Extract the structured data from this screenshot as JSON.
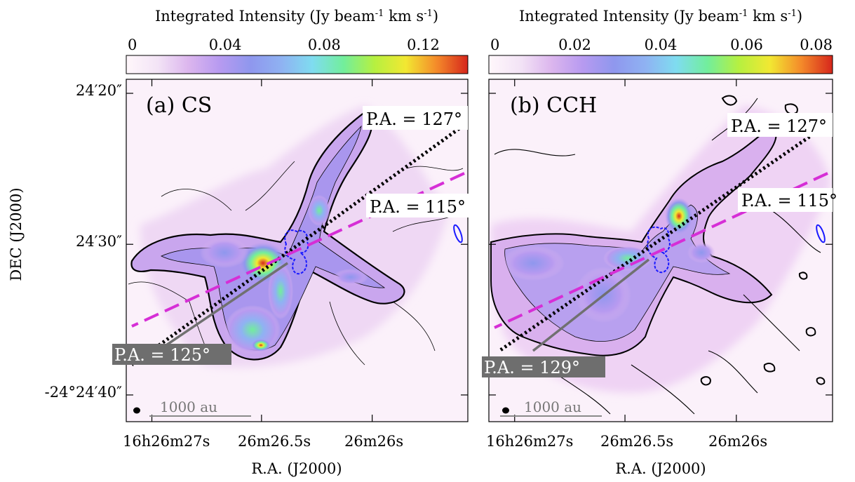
{
  "figure": {
    "ylabel": "DEC (J2000)",
    "yticks": [
      "24′20″",
      "24′30″",
      "-24°24′40″"
    ],
    "xticks": [
      "16h26m27s",
      "26m26.5s",
      "26m26s"
    ]
  },
  "colors": {
    "colormap": [
      "#fff7fb",
      "#f3e4f6",
      "#dcb6ee",
      "#b79af0",
      "#8f97ee",
      "#8fb2f2",
      "#7fdcf0",
      "#72ee9c",
      "#b6f040",
      "#f2e832",
      "#f48a2a",
      "#d6261c"
    ],
    "pa_dashed": "#d62ed6",
    "pa_dotted": "#000000",
    "pa_solid": "#707070",
    "beam_outline": "#1a1aff"
  },
  "chart_data": [
    {
      "type": "heatmap",
      "panel_label": "(a) CS",
      "title": "Integrated Intensity (Jy beam-1 km s-1)",
      "colorbar": {
        "range": [
          0,
          0.138
        ],
        "ticks": [
          0,
          0.04,
          0.08,
          0.12
        ],
        "tick_labels": [
          "0",
          "0.04",
          "0.08",
          "0.12"
        ]
      },
      "xlabel": "R.A. (J2000)",
      "xticks": [
        "16h26m27s",
        "26m26.5s",
        "26m26s"
      ],
      "ylabel": "DEC (J2000)",
      "yticks": [
        "24′20″",
        "24′30″",
        "-24°24′40″"
      ],
      "position_angle_lines": [
        {
          "label": "P.A. = 127°",
          "style": "dotted",
          "angle_deg": 127
        },
        {
          "label": "P.A. = 115°",
          "style": "dashed",
          "angle_deg": 115
        },
        {
          "label": "P.A. = 125°",
          "style": "solid",
          "angle_deg": 125
        }
      ],
      "scale_bar": "1000 au"
    },
    {
      "type": "heatmap",
      "panel_label": "(b) CCH",
      "title": "Integrated Intensity (Jy beam-1 km s-1)",
      "colorbar": {
        "range": [
          0,
          0.08
        ],
        "ticks": [
          0,
          0.02,
          0.04,
          0.06,
          0.08
        ],
        "tick_labels": [
          "0",
          "0.02",
          "0.04",
          "0.06",
          "0.08"
        ]
      },
      "xlabel": "R.A. (J2000)",
      "xticks": [
        "16h26m27s",
        "26m26.5s",
        "26m26s"
      ],
      "ylabel": "DEC (J2000)",
      "yticks": [
        "24′20″",
        "24′30″",
        "-24°24′40″"
      ],
      "position_angle_lines": [
        {
          "label": "P.A. = 127°",
          "style": "dotted",
          "angle_deg": 127
        },
        {
          "label": "P.A. = 115°",
          "style": "dashed",
          "angle_deg": 115
        },
        {
          "label": "P.A. = 129°",
          "style": "solid",
          "angle_deg": 129
        }
      ],
      "scale_bar": "1000 au"
    }
  ]
}
